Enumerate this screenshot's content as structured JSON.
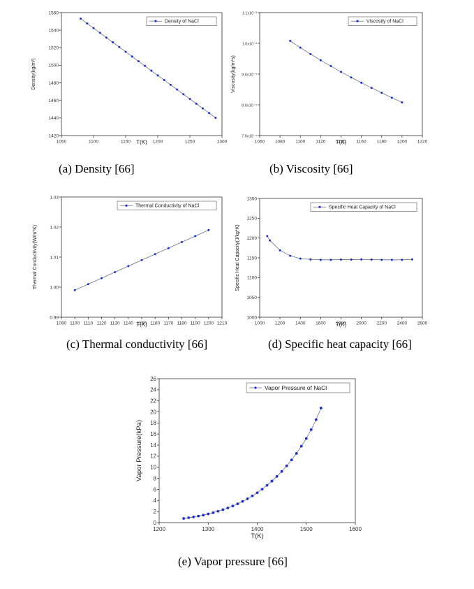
{
  "colors": {
    "series": "#1f2fd0",
    "line": "#6a6f8f",
    "axis": "#333333"
  },
  "chart_data": [
    {
      "id": "a",
      "type": "line",
      "title": "",
      "xlabel": "T(K)",
      "ylabel": "Density(kg/m³)",
      "legend": "Density of NaCl",
      "legend_position": "top-right",
      "caption": "(a)    Density [66]",
      "xlim": [
        1050,
        1300
      ],
      "ylim": [
        1420,
        1560
      ],
      "xticks": [
        1050,
        1100,
        1150,
        1200,
        1250,
        1300
      ],
      "yticks": [
        1420,
        1440,
        1460,
        1480,
        1500,
        1520,
        1540,
        1560
      ],
      "x": [
        1080,
        1090,
        1100,
        1110,
        1120,
        1130,
        1140,
        1150,
        1160,
        1170,
        1180,
        1190,
        1200,
        1210,
        1220,
        1230,
        1240,
        1250,
        1260,
        1270,
        1280,
        1290
      ],
      "y": [
        1553,
        1547.6,
        1542.3,
        1536.9,
        1531.5,
        1526.1,
        1520.8,
        1515.4,
        1510,
        1504.6,
        1499.3,
        1493.9,
        1488.5,
        1483.2,
        1477.8,
        1472.4,
        1467,
        1461.7,
        1456.3,
        1450.9,
        1445.6,
        1440.2
      ]
    },
    {
      "id": "b",
      "type": "line",
      "title": "",
      "xlabel": "T(K)",
      "ylabel": "Viscosity(kg/m*s)",
      "legend": "Viscosity of NaCl",
      "legend_position": "top-right",
      "caption": "(b) Viscosity [66]",
      "xlim": [
        1060,
        1220
      ],
      "ylim": [
        0.0007,
        0.0011
      ],
      "xticks": [
        1060,
        1080,
        1100,
        1120,
        1140,
        1160,
        1180,
        1200,
        1220
      ],
      "yticks": [
        0.0007,
        0.0008,
        0.0009,
        0.001,
        0.0011
      ],
      "yticklabels": [
        "7.0x10⁻⁴",
        "8.0x10⁻⁴",
        "9.0x10⁻⁴",
        "1.0x10⁻³",
        "1.1x10⁻³"
      ],
      "x": [
        1090,
        1100,
        1110,
        1120,
        1130,
        1140,
        1150,
        1160,
        1170,
        1180,
        1190,
        1200
      ],
      "y": [
        0.001008,
        0.000986,
        0.000965,
        0.000945,
        0.000926,
        0.000907,
        0.000889,
        0.000872,
        0.000855,
        0.000839,
        0.000823,
        0.000808
      ]
    },
    {
      "id": "c",
      "type": "line",
      "title": "",
      "xlabel": "T(K)",
      "ylabel": "Thermal Conductivity(W/m*K)",
      "legend": "Thermal Conductivity of NaCl",
      "legend_position": "top-right",
      "caption": "(c) Thermal conductivity [66]",
      "xlim": [
        1090,
        1210
      ],
      "ylim": [
        0.99,
        1.03
      ],
      "xticks": [
        1090,
        1100,
        1110,
        1120,
        1130,
        1140,
        1150,
        1160,
        1170,
        1180,
        1190,
        1200,
        1210
      ],
      "yticks": [
        0.99,
        1.0,
        1.01,
        1.02,
        1.03
      ],
      "yticklabels": [
        "0.99",
        "1.00",
        "1.01",
        "1.02",
        "1.03"
      ],
      "x": [
        1100,
        1110,
        1120,
        1130,
        1140,
        1150,
        1160,
        1170,
        1180,
        1190,
        1200
      ],
      "y": [
        0.999,
        1.001,
        1.003,
        1.005,
        1.007,
        1.009,
        1.011,
        1.013,
        1.015,
        1.017,
        1.019
      ]
    },
    {
      "id": "d",
      "type": "line",
      "title": "",
      "xlabel": "T(K)",
      "ylabel": "Specific Heat Capacity(J/kg*K)",
      "legend": "Specific Heat Capacity of NaCl",
      "legend_position": "top-right",
      "caption": "(d) Specific heat capacity [66]",
      "xlim": [
        1000,
        2600
      ],
      "ylim": [
        1000,
        1300
      ],
      "xticks": [
        1000,
        1200,
        1400,
        1600,
        1800,
        2000,
        2200,
        2400,
        2600
      ],
      "yticks": [
        1000,
        1050,
        1100,
        1150,
        1200,
        1250,
        1300
      ],
      "x": [
        1074,
        1100,
        1200,
        1300,
        1400,
        1500,
        1600,
        1700,
        1800,
        1900,
        2000,
        2100,
        2200,
        2300,
        2400,
        2500
      ],
      "y": [
        1205,
        1194,
        1169,
        1155,
        1148,
        1146,
        1145,
        1145,
        1145.5,
        1145.5,
        1146,
        1145.5,
        1145,
        1145,
        1145,
        1146
      ]
    },
    {
      "id": "e",
      "type": "line",
      "title": "",
      "xlabel": "T(K)",
      "ylabel": "Vapor Pressure(kPa)",
      "legend": "Vapor Pressure of NaCl",
      "legend_position": "top-right",
      "caption": "(e) Vapor pressure [66]",
      "xlim": [
        1200,
        1600
      ],
      "ylim": [
        0,
        26
      ],
      "xticks": [
        1200,
        1300,
        1400,
        1500,
        1600
      ],
      "yticks": [
        0,
        2,
        4,
        6,
        8,
        10,
        12,
        14,
        16,
        18,
        20,
        22,
        24,
        26
      ],
      "x": [
        1250,
        1260,
        1270,
        1280,
        1290,
        1300,
        1310,
        1320,
        1330,
        1340,
        1350,
        1360,
        1370,
        1380,
        1390,
        1400,
        1410,
        1420,
        1430,
        1440,
        1450,
        1460,
        1470,
        1480,
        1490,
        1500,
        1510,
        1520,
        1530
      ],
      "y": [
        0.75,
        0.88,
        1.02,
        1.18,
        1.36,
        1.57,
        1.79,
        2.05,
        2.34,
        2.65,
        3.0,
        3.39,
        3.83,
        4.3,
        4.83,
        5.4,
        6.04,
        6.74,
        7.5,
        8.34,
        9.25,
        10.25,
        11.33,
        12.5,
        13.8,
        15.2,
        16.8,
        18.6,
        20.7
      ]
    }
  ]
}
